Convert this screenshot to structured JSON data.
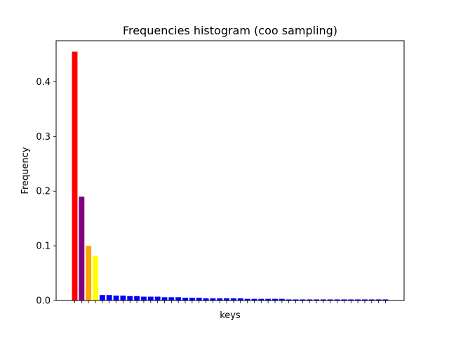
{
  "chart_data": {
    "type": "bar",
    "title": "Frequencies histogram (coo sampling)",
    "xlabel": "keys",
    "ylabel": "Frequency",
    "ylim": [
      0,
      0.475
    ],
    "yticks": [
      "0.0",
      "0.1",
      "0.2",
      "0.3",
      "0.4"
    ],
    "grid": false,
    "legend": "none",
    "categories_labeled": false,
    "values": [
      0.455,
      0.19,
      0.1,
      0.081,
      0.01,
      0.01,
      0.009,
      0.009,
      0.008,
      0.008,
      0.007,
      0.007,
      0.007,
      0.006,
      0.006,
      0.006,
      0.005,
      0.005,
      0.005,
      0.004,
      0.004,
      0.004,
      0.004,
      0.004,
      0.004,
      0.003,
      0.003,
      0.003,
      0.003,
      0.003,
      0.003,
      0.002,
      0.002,
      0.002,
      0.002,
      0.002,
      0.002,
      0.002,
      0.002,
      0.002,
      0.002,
      0.002,
      0.002,
      0.002,
      0.002,
      0.002
    ],
    "colors": [
      "#ff0000",
      "#800080",
      "#ffa500",
      "#ffff00"
    ],
    "default_color": "#0000ff"
  }
}
